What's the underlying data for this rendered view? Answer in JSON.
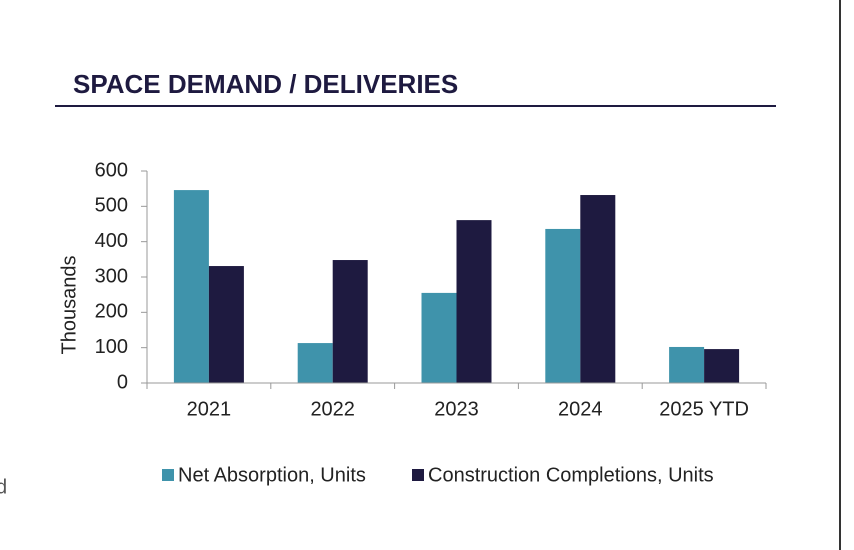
{
  "title": "SPACE DEMAND / DELIVERIES",
  "fragment": "d",
  "chart_data": {
    "type": "bar",
    "y_label": "Thousands",
    "categories": [
      "2021",
      "2022",
      "2023",
      "2024",
      "2025 YTD"
    ],
    "series": [
      {
        "name": "Net Absorption, Units",
        "color": "#3f93ab",
        "values": [
          546,
          113,
          255,
          436,
          102
        ]
      },
      {
        "name": "Construction Completions, Units",
        "color": "#1e1a40",
        "values": [
          331,
          348,
          461,
          532,
          96
        ]
      }
    ],
    "ylim": [
      0,
      600
    ],
    "yticks": [
      0,
      100,
      200,
      300,
      400,
      500,
      600
    ],
    "grid": false,
    "legend": "bottom"
  }
}
